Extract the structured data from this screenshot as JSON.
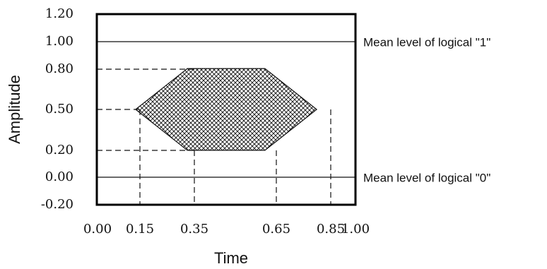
{
  "chart_data": {
    "type": "eye-diagram",
    "xlabel": "Time",
    "ylabel": "Amplitude",
    "xlim": [
      0,
      1
    ],
    "ylim": [
      -0.2,
      1.2
    ],
    "x_ticks": [
      "0.00",
      "0.15",
      "0.35",
      "0.65",
      "0.85",
      "1.00"
    ],
    "y_ticks": [
      "1.20",
      "1.00",
      "0.80",
      "0.50",
      "0.20",
      "0.00",
      "-0.20"
    ],
    "mask_hexagon": [
      {
        "x": 0.15,
        "y": 0.5
      },
      {
        "x": 0.35,
        "y": 0.8
      },
      {
        "x": 0.65,
        "y": 0.8
      },
      {
        "x": 0.85,
        "y": 0.5
      },
      {
        "x": 0.65,
        "y": 0.2
      },
      {
        "x": 0.35,
        "y": 0.2
      }
    ],
    "mean_levels": [
      {
        "y": 1.0,
        "label": "Mean level of logical \"1\""
      },
      {
        "y": 0.0,
        "label": "Mean level of logical \"0\""
      }
    ],
    "grid": false
  }
}
